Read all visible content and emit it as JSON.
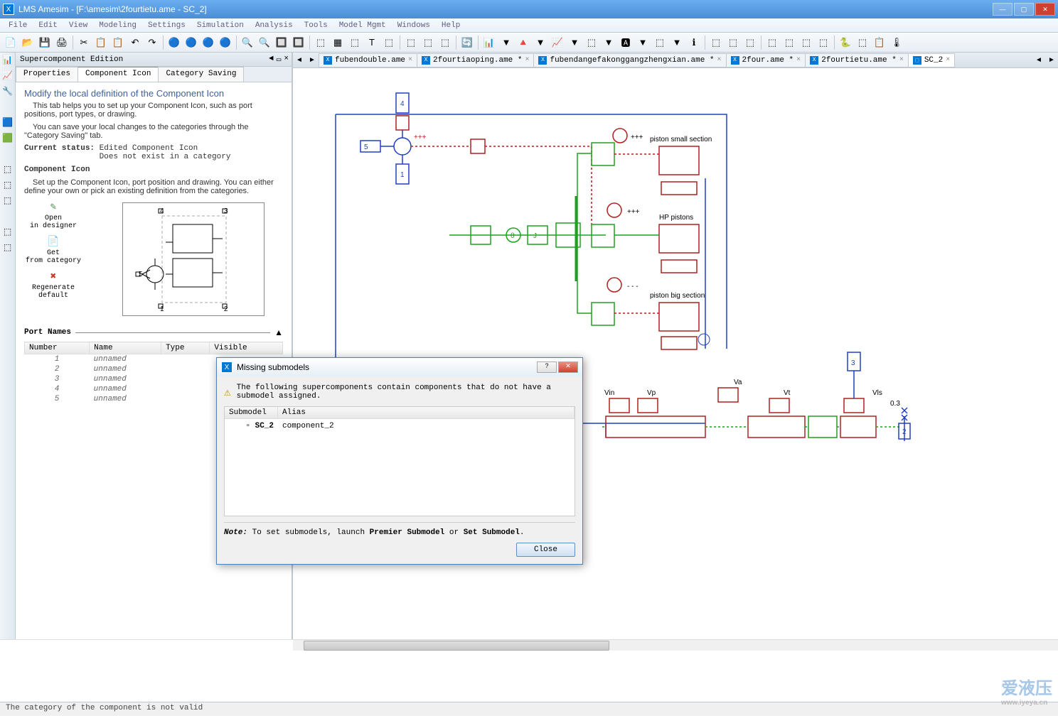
{
  "window": {
    "title": "LMS Amesim - [F:\\amesim\\2fourtietu.ame - SC_2]",
    "app_icon_glyph": "X"
  },
  "menu": [
    "File",
    "Edit",
    "View",
    "Modeling",
    "Settings",
    "Simulation",
    "Analysis",
    "Tools",
    "Model Mgmt",
    "Windows",
    "Help"
  ],
  "left_panel": {
    "title": "Supercomponent Edition",
    "tabs": [
      "Properties",
      "Component Icon",
      "Category Saving"
    ],
    "active_tab": 1,
    "heading": "Modify the local definition of the Component Icon",
    "desc1": "This tab helps you to set up your Component Icon, such as port positions, port types, or drawing.",
    "desc2": "You can save your local changes to the categories through the \"Category Saving\" tab.",
    "status_label": "Current status:",
    "status_val1": "Edited Component Icon",
    "status_val2": "Does not exist in a category",
    "section2": "Component Icon",
    "section2_desc": "Set up the Component Icon, port position and drawing. You can either define your own or pick an existing definition from the categories.",
    "actions": [
      {
        "icon": "✎",
        "color": "#4a8c4a",
        "line1": "Open",
        "line2": "in designer"
      },
      {
        "icon": "📄",
        "color": "#888",
        "line1": "Get",
        "line2": "from category"
      },
      {
        "icon": "✖",
        "color": "#c04030",
        "line1": "Regenerate",
        "line2": "default"
      }
    ],
    "port_section": "Port Names",
    "port_cols": [
      "Number",
      "Name",
      "Type",
      "Visible"
    ],
    "ports": [
      {
        "num": "1",
        "name": "unnamed"
      },
      {
        "num": "2",
        "name": "unnamed"
      },
      {
        "num": "3",
        "name": "unnamed"
      },
      {
        "num": "4",
        "name": "unnamed"
      },
      {
        "num": "5",
        "name": "unnamed"
      }
    ]
  },
  "doc_tabs": [
    {
      "label": "fubendouble.ame",
      "mod": false
    },
    {
      "label": "2fourtiaoping.ame *",
      "mod": true
    },
    {
      "label": "fubendangefakonggangzhengxian.ame *",
      "mod": true
    },
    {
      "label": "2four.ame *",
      "mod": true
    },
    {
      "label": "2fourtietu.ame *",
      "mod": true
    },
    {
      "label": "SC_2",
      "mod": false,
      "active": true,
      "icon": "⬚"
    }
  ],
  "schematic_labels": {
    "piston_small": "piston small section",
    "hp_pistons": "HP pistons",
    "piston_big": "piston big section",
    "vin": "Vin",
    "vp": "Vp",
    "va": "Va",
    "vt": "Vt",
    "vls": "Vls",
    "val_03": "0.3",
    "dots3": "+++",
    "dashes": "- - -"
  },
  "dialog": {
    "title": "Missing submodels",
    "message": "The following supercomponents contain components that do not have a submodel assigned.",
    "cols": [
      "Submodel",
      "Alias"
    ],
    "row": {
      "submodel": "SC_2",
      "alias": "component_2"
    },
    "note_prefix": "Note:",
    "note_text": " To set submodels, launch ",
    "note_bold1": "Premier Submodel",
    "note_or": " or ",
    "note_bold2": "Set Submodel",
    "close": "Close"
  },
  "status_text": "The category of the component is not valid",
  "watermark": {
    "main": "爱液压",
    "sub": "www.iyeya.cn"
  },
  "colors": {
    "blue": "#2040c0",
    "red": "#b02020",
    "green": "#20a020",
    "darkred": "#801010"
  }
}
